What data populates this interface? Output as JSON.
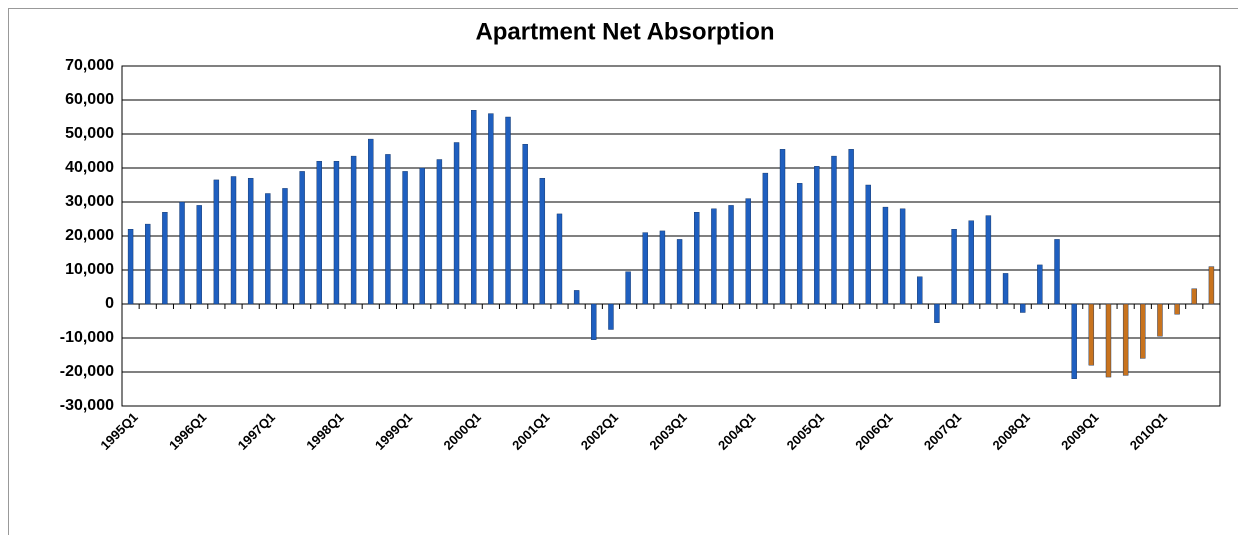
{
  "chart_data": {
    "type": "bar",
    "title": "Apartment Net Absorption",
    "categories": [
      "1995Q1",
      null,
      null,
      null,
      "1996Q1",
      null,
      null,
      null,
      "1997Q1",
      null,
      null,
      null,
      "1998Q1",
      null,
      null,
      null,
      "1999Q1",
      null,
      null,
      null,
      "2000Q1",
      null,
      null,
      null,
      "2001Q1",
      null,
      null,
      null,
      "2002Q1",
      null,
      null,
      null,
      "2003Q1",
      null,
      null,
      null,
      "2004Q1",
      null,
      null,
      null,
      "2005Q1",
      null,
      null,
      null,
      "2006Q1",
      null,
      null,
      null,
      "2007Q1",
      null,
      null,
      null,
      "2008Q1",
      null,
      null,
      null,
      "2009Q1",
      null,
      null,
      null,
      "2010Q1",
      null,
      null,
      null
    ],
    "values": [
      22000,
      23500,
      27000,
      30000,
      29000,
      36500,
      37500,
      37000,
      32500,
      34000,
      39000,
      42000,
      42000,
      43500,
      48500,
      44000,
      39000,
      40000,
      42500,
      47500,
      57000,
      56000,
      55000,
      47000,
      37000,
      26500,
      4000,
      -10500,
      -7500,
      9500,
      21000,
      21500,
      19000,
      27000,
      28000,
      29000,
      31000,
      38500,
      45500,
      35500,
      40500,
      43500,
      45500,
      35000,
      28500,
      28000,
      8000,
      -5500,
      22000,
      24500,
      26000,
      9000,
      -2500,
      11500,
      19000,
      -22000,
      -18000,
      -21500,
      -21000,
      -16000,
      -9500,
      -3000,
      4500,
      11000
    ],
    "colors": [
      "#1f5fbf",
      "#1f5fbf",
      "#1f5fbf",
      "#1f5fbf",
      "#1f5fbf",
      "#1f5fbf",
      "#1f5fbf",
      "#1f5fbf",
      "#1f5fbf",
      "#1f5fbf",
      "#1f5fbf",
      "#1f5fbf",
      "#1f5fbf",
      "#1f5fbf",
      "#1f5fbf",
      "#1f5fbf",
      "#1f5fbf",
      "#1f5fbf",
      "#1f5fbf",
      "#1f5fbf",
      "#1f5fbf",
      "#1f5fbf",
      "#1f5fbf",
      "#1f5fbf",
      "#1f5fbf",
      "#1f5fbf",
      "#1f5fbf",
      "#1f5fbf",
      "#1f5fbf",
      "#1f5fbf",
      "#1f5fbf",
      "#1f5fbf",
      "#1f5fbf",
      "#1f5fbf",
      "#1f5fbf",
      "#1f5fbf",
      "#1f5fbf",
      "#1f5fbf",
      "#1f5fbf",
      "#1f5fbf",
      "#1f5fbf",
      "#1f5fbf",
      "#1f5fbf",
      "#1f5fbf",
      "#1f5fbf",
      "#1f5fbf",
      "#1f5fbf",
      "#1f5fbf",
      "#1f5fbf",
      "#1f5fbf",
      "#1f5fbf",
      "#1f5fbf",
      "#1f5fbf",
      "#1f5fbf",
      "#1f5fbf",
      "#1f5fbf",
      "#c8731e",
      "#c8731e",
      "#c8731e",
      "#c8731e",
      "#c8731e",
      "#c8731e",
      "#c8731e",
      "#c8731e"
    ],
    "ylim": [
      -30000,
      70000
    ],
    "yticks": [
      {
        "value": -30000,
        "label": "-30,000"
      },
      {
        "value": -20000,
        "label": "-20,000"
      },
      {
        "value": -10000,
        "label": "-10,000"
      },
      0,
      {
        "value": 10000,
        "label": "10,000"
      },
      {
        "value": 20000,
        "label": "20,000"
      },
      {
        "value": 30000,
        "label": "30,000"
      },
      {
        "value": 40000,
        "label": "40,000"
      },
      {
        "value": 50000,
        "label": "50,000"
      },
      {
        "value": 60000,
        "label": "60,000"
      },
      {
        "value": 70000,
        "label": "70,000"
      }
    ],
    "grid": true
  }
}
